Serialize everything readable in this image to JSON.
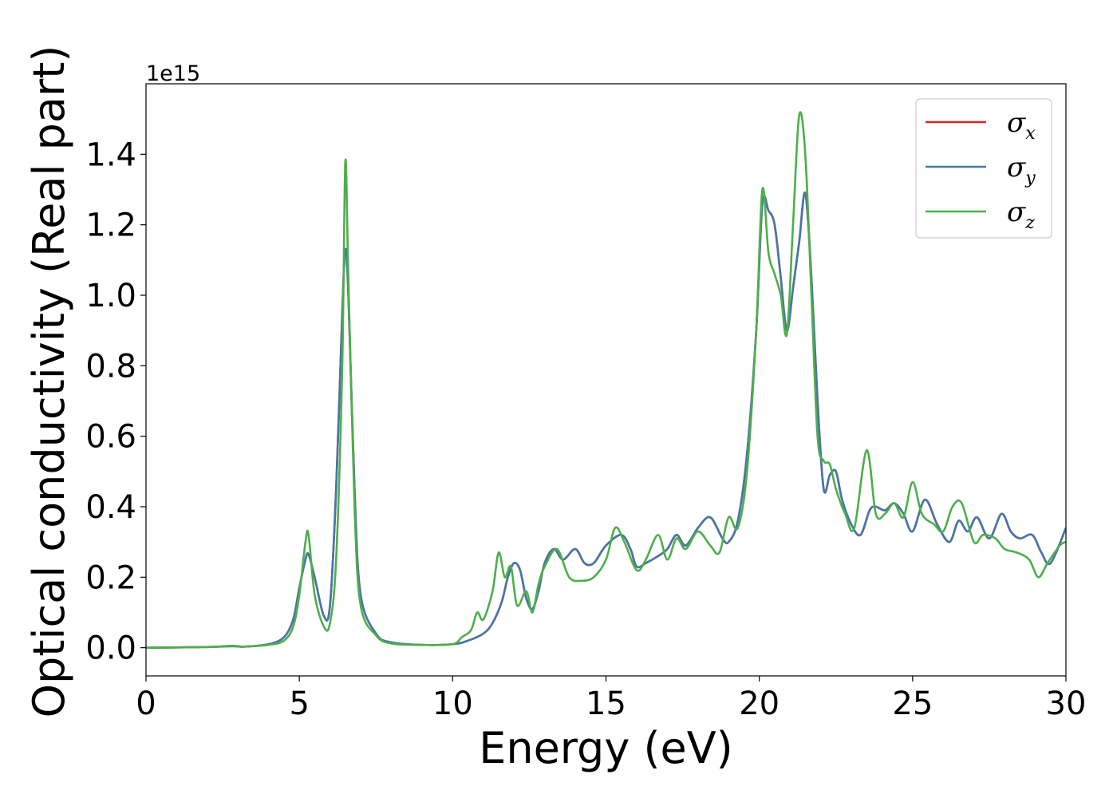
{
  "chart_data": {
    "type": "line",
    "xlabel": "Energy (eV)",
    "ylabel": "Optical conductivity (Real part)",
    "y_offset_text": "1e15",
    "xlim": [
      0,
      30
    ],
    "ylim": [
      -0.08,
      1.6
    ],
    "xticks": [
      0,
      5,
      10,
      15,
      20,
      25,
      30
    ],
    "xtick_labels": [
      "0",
      "5",
      "10",
      "15",
      "20",
      "25",
      "30"
    ],
    "yticks": [
      0.0,
      0.2,
      0.4,
      0.6,
      0.8,
      1.0,
      1.2,
      1.4
    ],
    "ytick_labels": [
      "0.0",
      "0.2",
      "0.4",
      "0.6",
      "0.8",
      "1.0",
      "1.2",
      "1.4"
    ],
    "grid": false,
    "legend_position": "top-right",
    "series": [
      {
        "name": "σx",
        "symbol": "σ",
        "sub": "x",
        "color": "#d62728",
        "x": [
          0,
          2,
          2.8,
          3.2,
          4,
          4.5,
          4.8,
          5.0,
          5.2,
          5.3,
          5.5,
          5.8,
          6.0,
          6.2,
          6.4,
          6.5,
          6.6,
          6.8,
          7.0,
          7.5,
          8.0,
          9.0,
          10.0,
          10.5,
          11.0,
          11.3,
          11.6,
          11.8,
          12.0,
          12.2,
          12.4,
          12.6,
          12.8,
          13.0,
          13.3,
          13.6,
          14.0,
          14.3,
          14.6,
          15.0,
          15.5,
          15.8,
          16.0,
          16.3,
          16.7,
          17.0,
          17.3,
          17.6,
          18.0,
          18.4,
          18.8,
          19.0,
          19.3,
          19.6,
          19.9,
          20.1,
          20.3,
          20.5,
          20.7,
          20.9,
          21.1,
          21.3,
          21.5,
          21.7,
          21.9,
          22.1,
          22.3,
          22.5,
          22.7,
          23.0,
          23.3,
          23.6,
          23.8,
          24.1,
          24.4,
          24.7,
          25.0,
          25.4,
          25.8,
          26.2,
          26.5,
          26.8,
          27.1,
          27.5,
          27.9,
          28.2,
          28.5,
          28.9,
          29.2,
          29.5,
          30.0
        ],
        "y": [
          0.0,
          0.002,
          0.005,
          0.003,
          0.01,
          0.03,
          0.08,
          0.17,
          0.25,
          0.265,
          0.2,
          0.09,
          0.12,
          0.45,
          0.95,
          1.13,
          1.0,
          0.45,
          0.15,
          0.04,
          0.015,
          0.008,
          0.01,
          0.02,
          0.04,
          0.07,
          0.13,
          0.2,
          0.24,
          0.22,
          0.14,
          0.11,
          0.16,
          0.24,
          0.28,
          0.25,
          0.28,
          0.24,
          0.24,
          0.29,
          0.32,
          0.28,
          0.23,
          0.24,
          0.26,
          0.28,
          0.32,
          0.29,
          0.34,
          0.37,
          0.31,
          0.3,
          0.36,
          0.55,
          0.9,
          1.26,
          1.24,
          1.2,
          1.05,
          0.9,
          1.02,
          1.15,
          1.29,
          1.05,
          0.7,
          0.45,
          0.49,
          0.5,
          0.42,
          0.35,
          0.32,
          0.39,
          0.4,
          0.39,
          0.41,
          0.38,
          0.33,
          0.42,
          0.35,
          0.3,
          0.36,
          0.33,
          0.37,
          0.31,
          0.38,
          0.33,
          0.31,
          0.32,
          0.27,
          0.24,
          0.34
        ]
      },
      {
        "name": "σy",
        "symbol": "σ",
        "sub": "y",
        "color": "#4477aa",
        "x": [
          0,
          2,
          2.8,
          3.2,
          4,
          4.5,
          4.8,
          5.0,
          5.2,
          5.3,
          5.5,
          5.8,
          6.0,
          6.2,
          6.4,
          6.5,
          6.6,
          6.8,
          7.0,
          7.5,
          8.0,
          9.0,
          10.0,
          10.5,
          11.0,
          11.3,
          11.6,
          11.8,
          12.0,
          12.2,
          12.4,
          12.6,
          12.8,
          13.0,
          13.3,
          13.6,
          14.0,
          14.3,
          14.6,
          15.0,
          15.5,
          15.8,
          16.0,
          16.3,
          16.7,
          17.0,
          17.3,
          17.6,
          18.0,
          18.4,
          18.8,
          19.0,
          19.3,
          19.6,
          19.9,
          20.1,
          20.3,
          20.5,
          20.7,
          20.9,
          21.1,
          21.3,
          21.5,
          21.7,
          21.9,
          22.1,
          22.3,
          22.5,
          22.7,
          23.0,
          23.3,
          23.6,
          23.8,
          24.1,
          24.4,
          24.7,
          25.0,
          25.4,
          25.8,
          26.2,
          26.5,
          26.8,
          27.1,
          27.5,
          27.9,
          28.2,
          28.5,
          28.9,
          29.2,
          29.5,
          30.0
        ],
        "y": [
          0.0,
          0.002,
          0.005,
          0.003,
          0.01,
          0.03,
          0.08,
          0.17,
          0.25,
          0.265,
          0.2,
          0.09,
          0.12,
          0.45,
          0.95,
          1.13,
          1.0,
          0.45,
          0.15,
          0.04,
          0.015,
          0.008,
          0.01,
          0.02,
          0.04,
          0.07,
          0.13,
          0.2,
          0.24,
          0.22,
          0.14,
          0.11,
          0.16,
          0.24,
          0.28,
          0.25,
          0.28,
          0.24,
          0.24,
          0.29,
          0.32,
          0.28,
          0.23,
          0.24,
          0.26,
          0.28,
          0.32,
          0.29,
          0.34,
          0.37,
          0.31,
          0.3,
          0.36,
          0.55,
          0.9,
          1.26,
          1.24,
          1.2,
          1.05,
          0.9,
          1.02,
          1.15,
          1.29,
          1.05,
          0.7,
          0.45,
          0.49,
          0.5,
          0.42,
          0.35,
          0.32,
          0.39,
          0.4,
          0.39,
          0.41,
          0.38,
          0.33,
          0.42,
          0.35,
          0.3,
          0.36,
          0.33,
          0.37,
          0.31,
          0.38,
          0.33,
          0.31,
          0.32,
          0.27,
          0.24,
          0.34
        ]
      },
      {
        "name": "σz",
        "symbol": "σ",
        "sub": "z",
        "color": "#4daf4a",
        "x": [
          0,
          2,
          2.8,
          3.2,
          4,
          4.5,
          4.8,
          5.0,
          5.2,
          5.3,
          5.5,
          5.8,
          6.0,
          6.2,
          6.4,
          6.5,
          6.6,
          6.8,
          7.0,
          7.5,
          8.0,
          9.0,
          10.0,
          10.3,
          10.6,
          10.8,
          11.0,
          11.3,
          11.5,
          11.7,
          11.9,
          12.1,
          12.4,
          12.6,
          12.8,
          13.0,
          13.4,
          13.8,
          14.2,
          14.6,
          15.0,
          15.3,
          15.6,
          16.0,
          16.3,
          16.7,
          17.0,
          17.3,
          17.6,
          18.0,
          18.4,
          18.7,
          19.0,
          19.3,
          19.6,
          19.9,
          20.1,
          20.3,
          20.5,
          20.7,
          20.9,
          21.1,
          21.3,
          21.5,
          21.7,
          21.9,
          22.1,
          22.3,
          22.5,
          22.8,
          23.1,
          23.5,
          23.8,
          24.1,
          24.4,
          24.7,
          25.0,
          25.3,
          25.7,
          26.0,
          26.3,
          26.6,
          27.0,
          27.3,
          27.7,
          28.0,
          28.4,
          28.8,
          29.1,
          29.4,
          29.8,
          30.0
        ],
        "y": [
          0.0,
          0.002,
          0.004,
          0.003,
          0.008,
          0.02,
          0.06,
          0.15,
          0.3,
          0.32,
          0.15,
          0.06,
          0.07,
          0.25,
          0.8,
          1.38,
          1.05,
          0.4,
          0.12,
          0.035,
          0.012,
          0.008,
          0.01,
          0.03,
          0.05,
          0.1,
          0.08,
          0.16,
          0.27,
          0.2,
          0.23,
          0.12,
          0.16,
          0.1,
          0.18,
          0.23,
          0.28,
          0.2,
          0.19,
          0.2,
          0.25,
          0.34,
          0.3,
          0.22,
          0.25,
          0.32,
          0.25,
          0.31,
          0.28,
          0.33,
          0.29,
          0.27,
          0.37,
          0.34,
          0.5,
          0.9,
          1.3,
          1.12,
          1.06,
          1.0,
          0.89,
          1.2,
          1.51,
          1.4,
          1.0,
          0.6,
          0.53,
          0.52,
          0.45,
          0.38,
          0.34,
          0.56,
          0.38,
          0.38,
          0.41,
          0.37,
          0.47,
          0.38,
          0.35,
          0.33,
          0.4,
          0.41,
          0.3,
          0.32,
          0.31,
          0.28,
          0.27,
          0.25,
          0.2,
          0.24,
          0.29,
          0.3
        ]
      }
    ]
  }
}
